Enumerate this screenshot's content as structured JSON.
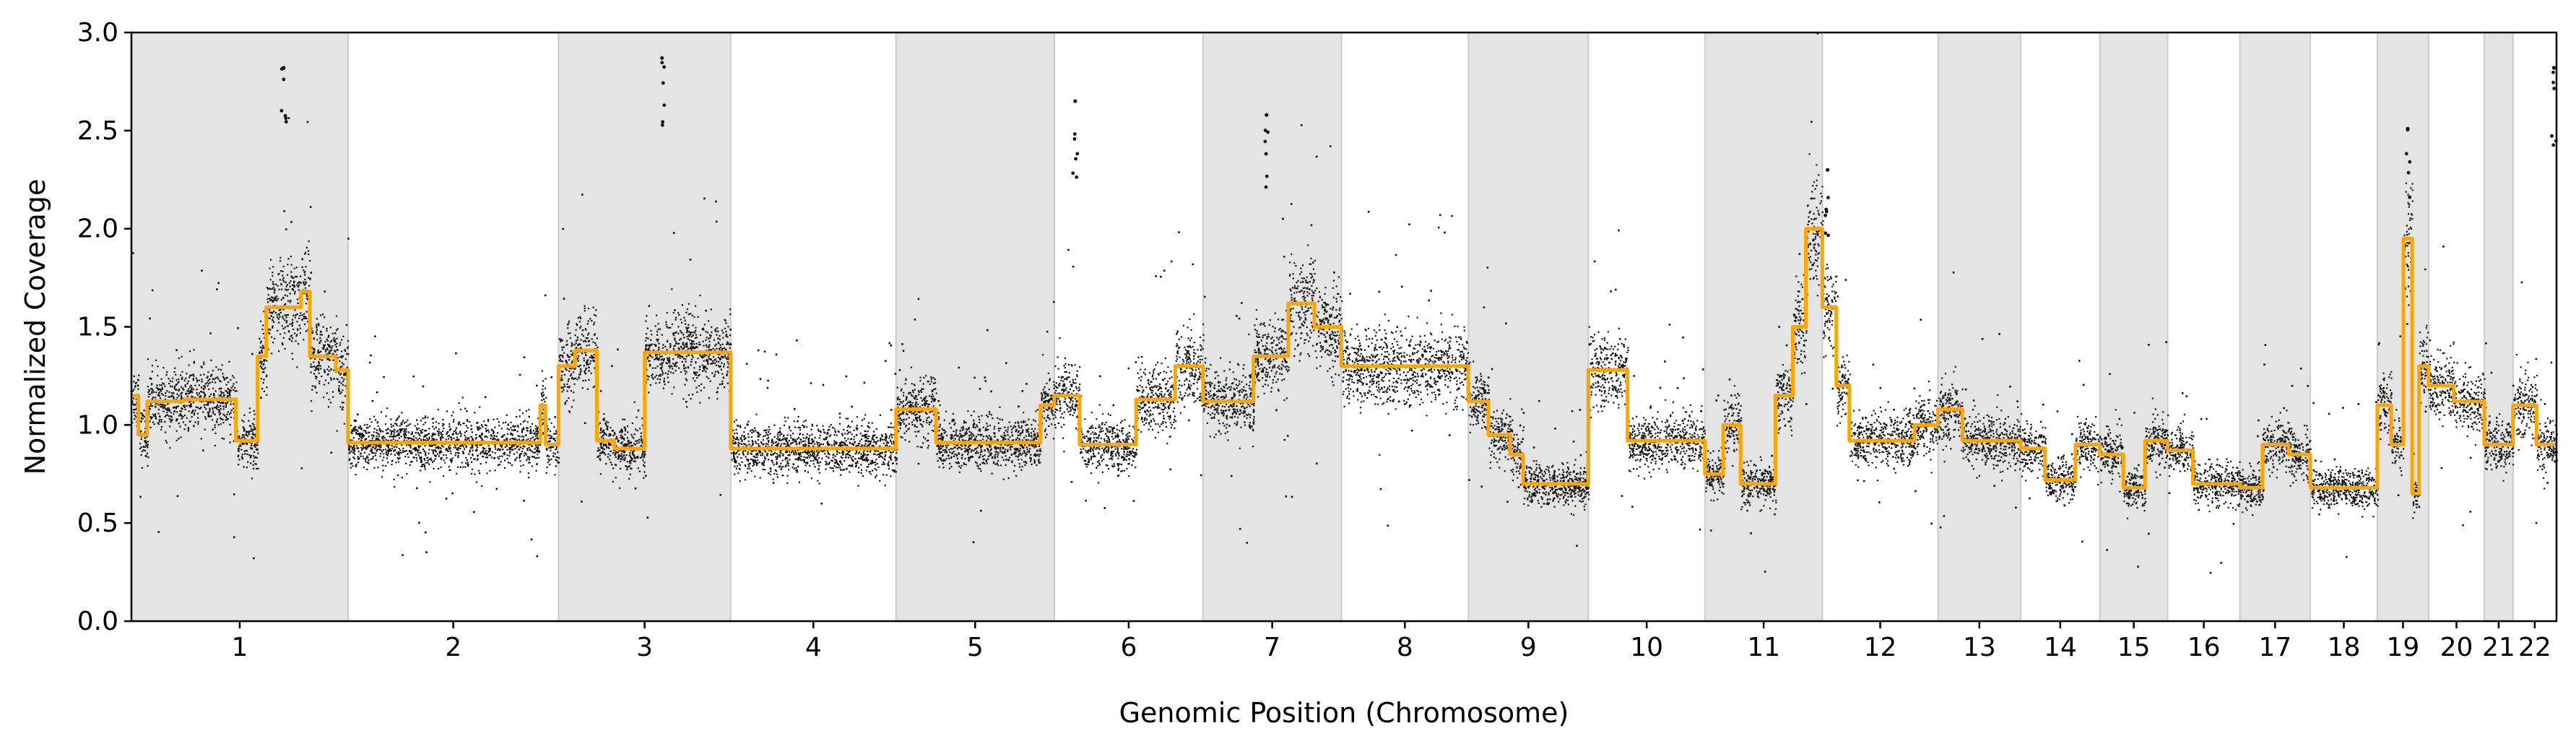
{
  "chart_data": {
    "type": "scatter",
    "title": "",
    "xlabel": "Genomic Position (Chromosome)",
    "ylabel": "Normalized Coverage",
    "ylim": [
      0.0,
      3.0
    ],
    "yticks": [
      "0.0",
      "0.5",
      "1.0",
      "1.5",
      "2.0",
      "2.5",
      "3.0"
    ],
    "grid": false,
    "legend": "none",
    "x_unit": "cumulative genomic position (Mb)",
    "colors": {
      "points": "#111111",
      "segment_line": "#FFA500",
      "shade": "#e4e4e4",
      "shade_edge": "#cccccc"
    },
    "chromosomes": [
      {
        "name": "1",
        "start": 0,
        "end": 249,
        "shaded": true
      },
      {
        "name": "2",
        "start": 249,
        "end": 491,
        "shaded": false
      },
      {
        "name": "3",
        "start": 491,
        "end": 689,
        "shaded": true
      },
      {
        "name": "4",
        "start": 689,
        "end": 879,
        "shaded": false
      },
      {
        "name": "5",
        "start": 879,
        "end": 1061,
        "shaded": true
      },
      {
        "name": "6",
        "start": 1061,
        "end": 1232,
        "shaded": false
      },
      {
        "name": "7",
        "start": 1232,
        "end": 1391,
        "shaded": true
      },
      {
        "name": "8",
        "start": 1391,
        "end": 1537,
        "shaded": false
      },
      {
        "name": "9",
        "start": 1537,
        "end": 1675,
        "shaded": true
      },
      {
        "name": "10",
        "start": 1675,
        "end": 1809,
        "shaded": false
      },
      {
        "name": "11",
        "start": 1809,
        "end": 1944,
        "shaded": true
      },
      {
        "name": "12",
        "start": 1944,
        "end": 2077,
        "shaded": false
      },
      {
        "name": "13",
        "start": 2077,
        "end": 2172,
        "shaded": true
      },
      {
        "name": "14",
        "start": 2172,
        "end": 2263,
        "shaded": false
      },
      {
        "name": "15",
        "start": 2263,
        "end": 2341,
        "shaded": true
      },
      {
        "name": "16",
        "start": 2341,
        "end": 2424,
        "shaded": false
      },
      {
        "name": "17",
        "start": 2424,
        "end": 2505,
        "shaded": true
      },
      {
        "name": "18",
        "start": 2505,
        "end": 2582,
        "shaded": false
      },
      {
        "name": "19",
        "start": 2582,
        "end": 2641,
        "shaded": true
      },
      {
        "name": "20",
        "start": 2641,
        "end": 2705,
        "shaded": false
      },
      {
        "name": "21",
        "start": 2705,
        "end": 2738,
        "shaded": true
      },
      {
        "name": "22",
        "start": 2738,
        "end": 2788,
        "shaded": false
      }
    ],
    "xlim": [
      0,
      2788
    ],
    "segments": [
      {
        "chrom": "1",
        "x0": 0,
        "x1": 8,
        "y": 1.15
      },
      {
        "chrom": "1",
        "x0": 8,
        "x1": 18,
        "y": 0.95
      },
      {
        "chrom": "1",
        "x0": 18,
        "x1": 60,
        "y": 1.12
      },
      {
        "chrom": "1",
        "x0": 60,
        "x1": 120,
        "y": 1.13
      },
      {
        "chrom": "1",
        "x0": 120,
        "x1": 145,
        "y": 0.92
      },
      {
        "chrom": "1",
        "x0": 145,
        "x1": 155,
        "y": 1.35
      },
      {
        "chrom": "1",
        "x0": 155,
        "x1": 195,
        "y": 1.6
      },
      {
        "chrom": "1",
        "x0": 195,
        "x1": 205,
        "y": 1.68
      },
      {
        "chrom": "1",
        "x0": 205,
        "x1": 235,
        "y": 1.35
      },
      {
        "chrom": "1",
        "x0": 235,
        "x1": 249,
        "y": 1.28
      },
      {
        "chrom": "2",
        "x0": 249,
        "x1": 470,
        "y": 0.91
      },
      {
        "chrom": "2",
        "x0": 470,
        "x1": 476,
        "y": 1.1
      },
      {
        "chrom": "2",
        "x0": 476,
        "x1": 491,
        "y": 0.9
      },
      {
        "chrom": "3",
        "x0": 491,
        "x1": 510,
        "y": 1.3
      },
      {
        "chrom": "3",
        "x0": 510,
        "x1": 535,
        "y": 1.38
      },
      {
        "chrom": "3",
        "x0": 535,
        "x1": 555,
        "y": 0.92
      },
      {
        "chrom": "3",
        "x0": 555,
        "x1": 590,
        "y": 0.88
      },
      {
        "chrom": "3",
        "x0": 590,
        "x1": 689,
        "y": 1.37
      },
      {
        "chrom": "4",
        "x0": 689,
        "x1": 879,
        "y": 0.88
      },
      {
        "chrom": "5",
        "x0": 879,
        "x1": 925,
        "y": 1.08
      },
      {
        "chrom": "5",
        "x0": 925,
        "x1": 1045,
        "y": 0.91
      },
      {
        "chrom": "5",
        "x0": 1045,
        "x1": 1061,
        "y": 1.1
      },
      {
        "chrom": "6",
        "x0": 1061,
        "x1": 1090,
        "y": 1.15
      },
      {
        "chrom": "6",
        "x0": 1090,
        "x1": 1155,
        "y": 0.9
      },
      {
        "chrom": "6",
        "x0": 1155,
        "x1": 1200,
        "y": 1.13
      },
      {
        "chrom": "6",
        "x0": 1200,
        "x1": 1232,
        "y": 1.3
      },
      {
        "chrom": "7",
        "x0": 1232,
        "x1": 1290,
        "y": 1.12
      },
      {
        "chrom": "7",
        "x0": 1290,
        "x1": 1330,
        "y": 1.35
      },
      {
        "chrom": "7",
        "x0": 1330,
        "x1": 1360,
        "y": 1.62
      },
      {
        "chrom": "7",
        "x0": 1360,
        "x1": 1391,
        "y": 1.5
      },
      {
        "chrom": "8",
        "x0": 1391,
        "x1": 1537,
        "y": 1.3
      },
      {
        "chrom": "9",
        "x0": 1537,
        "x1": 1560,
        "y": 1.12
      },
      {
        "chrom": "9",
        "x0": 1560,
        "x1": 1585,
        "y": 0.95
      },
      {
        "chrom": "9",
        "x0": 1585,
        "x1": 1600,
        "y": 0.85
      },
      {
        "chrom": "9",
        "x0": 1600,
        "x1": 1675,
        "y": 0.7
      },
      {
        "chrom": "10",
        "x0": 1675,
        "x1": 1720,
        "y": 1.28
      },
      {
        "chrom": "10",
        "x0": 1720,
        "x1": 1809,
        "y": 0.92
      },
      {
        "chrom": "11",
        "x0": 1809,
        "x1": 1830,
        "y": 0.75
      },
      {
        "chrom": "11",
        "x0": 1830,
        "x1": 1850,
        "y": 1.0
      },
      {
        "chrom": "11",
        "x0": 1850,
        "x1": 1890,
        "y": 0.7
      },
      {
        "chrom": "11",
        "x0": 1890,
        "x1": 1910,
        "y": 1.15
      },
      {
        "chrom": "11",
        "x0": 1910,
        "x1": 1925,
        "y": 1.5
      },
      {
        "chrom": "11",
        "x0": 1925,
        "x1": 1944,
        "y": 2.0
      },
      {
        "chrom": "12",
        "x0": 1944,
        "x1": 1960,
        "y": 1.6
      },
      {
        "chrom": "12",
        "x0": 1960,
        "x1": 1975,
        "y": 1.2
      },
      {
        "chrom": "12",
        "x0": 1975,
        "x1": 2050,
        "y": 0.92
      },
      {
        "chrom": "12",
        "x0": 2050,
        "x1": 2077,
        "y": 1.0
      },
      {
        "chrom": "13",
        "x0": 2077,
        "x1": 2105,
        "y": 1.08
      },
      {
        "chrom": "13",
        "x0": 2105,
        "x1": 2172,
        "y": 0.92
      },
      {
        "chrom": "14",
        "x0": 2172,
        "x1": 2200,
        "y": 0.88
      },
      {
        "chrom": "14",
        "x0": 2200,
        "x1": 2235,
        "y": 0.72
      },
      {
        "chrom": "14",
        "x0": 2235,
        "x1": 2263,
        "y": 0.9
      },
      {
        "chrom": "15",
        "x0": 2263,
        "x1": 2290,
        "y": 0.85
      },
      {
        "chrom": "15",
        "x0": 2290,
        "x1": 2315,
        "y": 0.68
      },
      {
        "chrom": "15",
        "x0": 2315,
        "x1": 2341,
        "y": 0.92
      },
      {
        "chrom": "16",
        "x0": 2341,
        "x1": 2370,
        "y": 0.87
      },
      {
        "chrom": "16",
        "x0": 2370,
        "x1": 2424,
        "y": 0.7
      },
      {
        "chrom": "17",
        "x0": 2424,
        "x1": 2450,
        "y": 0.68
      },
      {
        "chrom": "17",
        "x0": 2450,
        "x1": 2480,
        "y": 0.9
      },
      {
        "chrom": "17",
        "x0": 2480,
        "x1": 2505,
        "y": 0.85
      },
      {
        "chrom": "18",
        "x0": 2505,
        "x1": 2582,
        "y": 0.68
      },
      {
        "chrom": "19",
        "x0": 2582,
        "x1": 2598,
        "y": 1.1
      },
      {
        "chrom": "19",
        "x0": 2598,
        "x1": 2612,
        "y": 0.9
      },
      {
        "chrom": "19",
        "x0": 2612,
        "x1": 2622,
        "y": 1.95
      },
      {
        "chrom": "19",
        "x0": 2622,
        "x1": 2630,
        "y": 0.65
      },
      {
        "chrom": "19",
        "x0": 2630,
        "x1": 2641,
        "y": 1.3
      },
      {
        "chrom": "20",
        "x0": 2641,
        "x1": 2670,
        "y": 1.2
      },
      {
        "chrom": "20",
        "x0": 2670,
        "x1": 2705,
        "y": 1.12
      },
      {
        "chrom": "21",
        "x0": 2705,
        "x1": 2738,
        "y": 0.9
      },
      {
        "chrom": "22",
        "x0": 2738,
        "x1": 2765,
        "y": 1.1
      },
      {
        "chrom": "22",
        "x0": 2765,
        "x1": 2788,
        "y": 0.9
      }
    ],
    "scatter": {
      "point_density_per_mb": 6,
      "noise_sd": 0.045,
      "outliers_per_mb": 0.12,
      "notable_peaks": [
        {
          "chrom": "1",
          "x": 175,
          "y": 2.82
        },
        {
          "chrom": "3",
          "x": 610,
          "y": 2.87
        },
        {
          "chrom": "6",
          "x": 1085,
          "y": 2.65
        },
        {
          "chrom": "7",
          "x": 1305,
          "y": 2.58
        },
        {
          "chrom": "12",
          "x": 1950,
          "y": 2.3
        },
        {
          "chrom": "19",
          "x": 2617,
          "y": 2.51
        },
        {
          "chrom": "22",
          "x": 2785,
          "y": 2.82
        }
      ]
    }
  }
}
